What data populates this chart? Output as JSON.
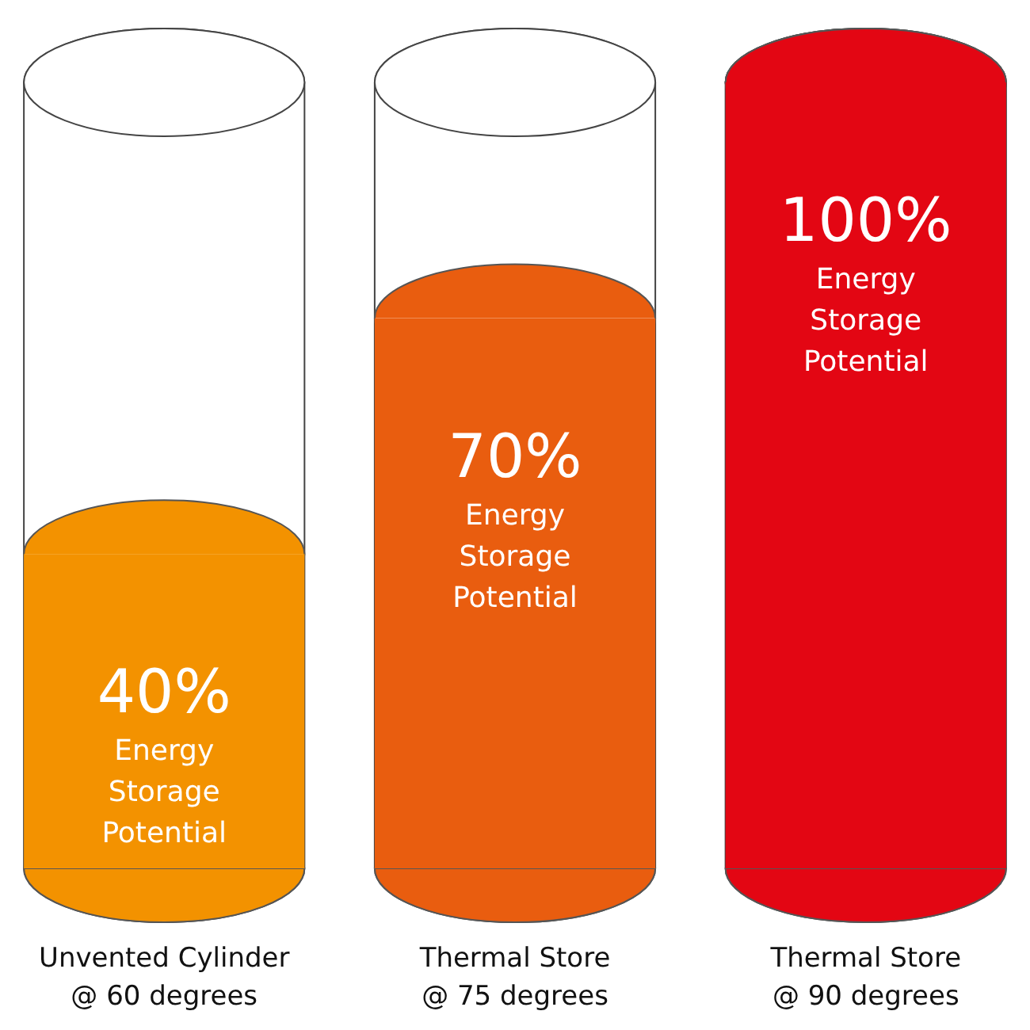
{
  "chart_data": {
    "type": "bar",
    "categories": [
      "Unvented Cylinder\n@ 60 degrees",
      "Thermal Store\n@ 75 degrees",
      "Thermal Store\n@ 90 degrees"
    ],
    "values": [
      40,
      70,
      100
    ],
    "colors": [
      "#f39200",
      "#e95d0f",
      "#e30613"
    ],
    "ylim": [
      0,
      100
    ],
    "value_labels": [
      "40% Energy Storage Potential",
      "70% Energy Storage Potential",
      "100% Energy Storage Potential"
    ]
  }
}
